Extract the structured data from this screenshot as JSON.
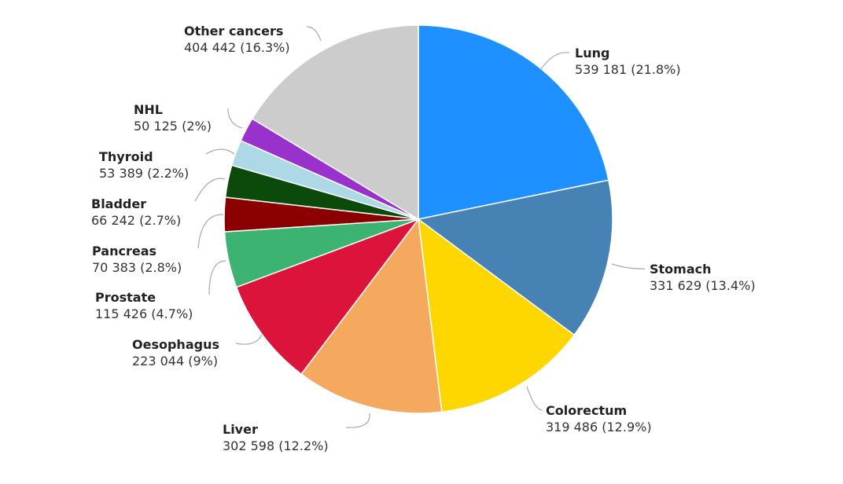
{
  "chart_data": {
    "type": "pie",
    "start_angle": "top",
    "direction": "clockwise",
    "legend": "none",
    "slices": [
      {
        "label": "Lung",
        "value": 539181,
        "percent_text": "539 181 (21.8%)",
        "color": "#1e90ff"
      },
      {
        "label": "Stomach",
        "value": 331629,
        "percent_text": "331 629 (13.4%)",
        "color": "#4682b4"
      },
      {
        "label": "Colorectum",
        "value": 319486,
        "percent_text": "319 486 (12.9%)",
        "color": "#ffd700"
      },
      {
        "label": "Liver",
        "value": 302598,
        "percent_text": "302 598 (12.2%)",
        "color": "#f4a95e"
      },
      {
        "label": "Oesophagus",
        "value": 223044,
        "percent_text": "223 044 (9%)",
        "color": "#dc143c"
      },
      {
        "label": "Prostate",
        "value": 115426,
        "percent_text": "115 426 (4.7%)",
        "color": "#3cb371"
      },
      {
        "label": "Pancreas",
        "value": 70383,
        "percent_text": "70 383 (2.8%)",
        "color": "#8b0000"
      },
      {
        "label": "Bladder",
        "value": 66242,
        "percent_text": "66 242 (2.7%)",
        "color": "#0b4a0b"
      },
      {
        "label": "Thyroid",
        "value": 53389,
        "percent_text": "53 389 (2.2%)",
        "color": "#add8e6"
      },
      {
        "label": "NHL",
        "value": 50125,
        "percent_text": "50 125 (2%)",
        "color": "#9932cc"
      },
      {
        "label": "Other cancers",
        "value": 404442,
        "percent_text": "404 442 (16.3%)",
        "color": "#cccccc"
      }
    ]
  }
}
